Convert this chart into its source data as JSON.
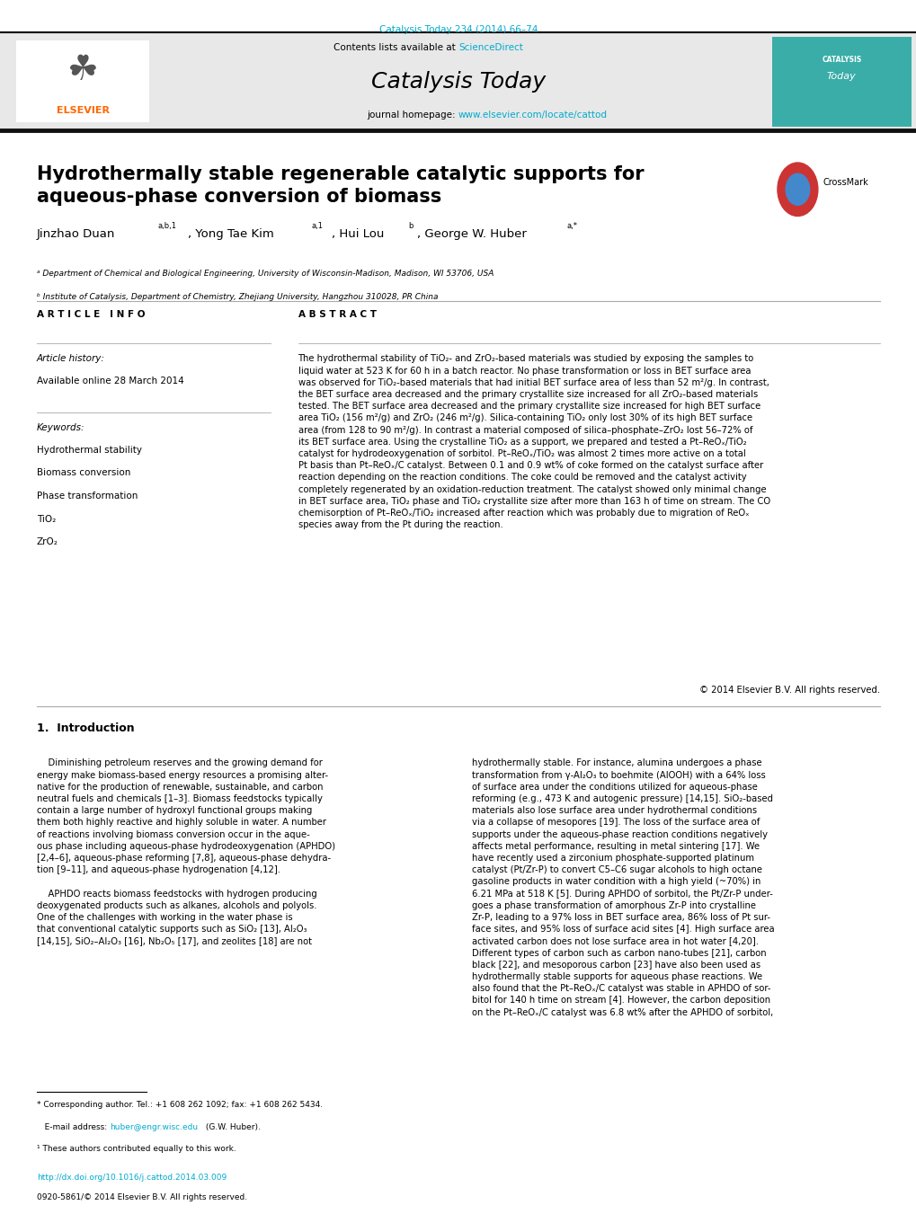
{
  "bg_color": "#ffffff",
  "page_width": 10.2,
  "page_height": 13.51,
  "journal_ref": "Catalysis Today 234 (2014) 66–74",
  "journal_ref_color": "#00aacc",
  "contents_text": "Contents lists available at ",
  "science_direct": "ScienceDirect",
  "science_direct_color": "#00aacc",
  "journal_name": "Catalysis Today",
  "journal_homepage_prefix": "journal homepage: ",
  "journal_homepage_url": "www.elsevier.com/locate/cattod",
  "journal_homepage_url_color": "#00aacc",
  "elsevier_color": "#ff6600",
  "header_bg": "#e8e8e8",
  "article_title": "Hydrothermally stable regenerable catalytic supports for\naqueous-phase conversion of biomass",
  "affil_a": "ᵃ Department of Chemical and Biological Engineering, University of Wisconsin-Madison, Madison, WI 53706, USA",
  "affil_b": "ᵇ Institute of Catalysis, Department of Chemistry, Zhejiang University, Hangzhou 310028, PR China",
  "article_info_title": "A R T I C L E   I N F O",
  "article_history": "Article history:",
  "available_online": "Available online 28 March 2014",
  "keywords_title": "Keywords:",
  "keywords": [
    "Hydrothermal stability",
    "Biomass conversion",
    "Phase transformation",
    "TiO₂",
    "ZrO₂"
  ],
  "abstract_title": "A B S T R A C T",
  "abstract_text": "The hydrothermal stability of TiO₂- and ZrO₂-based materials was studied by exposing the samples to\nliquid water at 523 K for 60 h in a batch reactor. No phase transformation or loss in BET surface area\nwas observed for TiO₂-based materials that had initial BET surface area of less than 52 m²/g. In contrast,\nthe BET surface area decreased and the primary crystallite size increased for all ZrO₂-based materials\ntested. The BET surface area decreased and the primary crystallite size increased for high BET surface\narea TiO₂ (156 m²/g) and ZrO₂ (246 m²/g). Silica-containing TiO₂ only lost 30% of its high BET surface\narea (from 128 to 90 m²/g). In contrast a material composed of silica–phosphate–ZrO₂ lost 56–72% of\nits BET surface area. Using the crystalline TiO₂ as a support, we prepared and tested a Pt–ReOₓ/TiO₂\ncatalyst for hydrodeoxygenation of sorbitol. Pt–ReOₓ/TiO₂ was almost 2 times more active on a total\nPt basis than Pt–ReOₓ/C catalyst. Between 0.1 and 0.9 wt% of coke formed on the catalyst surface after\nreaction depending on the reaction conditions. The coke could be removed and the catalyst activity\ncompletely regenerated by an oxidation-reduction treatment. The catalyst showed only minimal change\nin BET surface area, TiO₂ phase and TiO₂ crystallite size after more than 163 h of time on stream. The CO\nchemisorption of Pt–ReOₓ/TiO₂ increased after reaction which was probably due to migration of ReOₓ\nspecies away from the Pt during the reaction.",
  "copyright": "© 2014 Elsevier B.V. All rights reserved.",
  "intro_title": "1.  Introduction",
  "intro_col1": "    Diminishing petroleum reserves and the growing demand for\nenergy make biomass-based energy resources a promising alter-\nnative for the production of renewable, sustainable, and carbon\nneutral fuels and chemicals [1–3]. Biomass feedstocks typically\ncontain a large number of hydroxyl functional groups making\nthem both highly reactive and highly soluble in water. A number\nof reactions involving biomass conversion occur in the aque-\nous phase including aqueous-phase hydrodeoxygenation (APHDO)\n[2,4–6], aqueous-phase reforming [7,8], aqueous-phase dehydra-\ntion [9–11], and aqueous-phase hydrogenation [4,12].\n\n    APHDO reacts biomass feedstocks with hydrogen producing\ndeoxygenated products such as alkanes, alcohols and polyols.\nOne of the challenges with working in the water phase is\nthat conventional catalytic supports such as SiO₂ [13], Al₂O₃\n[14,15], SiO₂–Al₂O₃ [16], Nb₂O₅ [17], and zeolites [18] are not",
  "intro_col2": "hydrothermally stable. For instance, alumina undergoes a phase\ntransformation from γ-Al₂O₃ to boehmite (AlOOH) with a 64% loss\nof surface area under the conditions utilized for aqueous-phase\nreforming (e.g., 473 K and autogenic pressure) [14,15]. SiO₂-based\nmaterials also lose surface area under hydrothermal conditions\nvia a collapse of mesopores [19]. The loss of the surface area of\nsupports under the aqueous-phase reaction conditions negatively\naffects metal performance, resulting in metal sintering [17]. We\nhave recently used a zirconium phosphate-supported platinum\ncatalyst (Pt/Zr-P) to convert C5–C6 sugar alcohols to high octane\ngasoline products in water condition with a high yield (~70%) in\n6.21 MPa at 518 K [5]. During APHDO of sorbitol, the Pt/Zr-P under-\ngoes a phase transformation of amorphous Zr-P into crystalline\nZr-P, leading to a 97% loss in BET surface area, 86% loss of Pt sur-\nface sites, and 95% loss of surface acid sites [4]. High surface area\nactivated carbon does not lose surface area in hot water [4,20].\nDifferent types of carbon such as carbon nano-tubes [21], carbon\nblack [22], and mesoporous carbon [23] have also been used as\nhydrothermally stable supports for aqueous phase reactions. We\nalso found that the Pt–ReOₓ/C catalyst was stable in APHDO of sor-\nbitol for 140 h time on stream [4]. However, the carbon deposition\non the Pt–ReOₓ/C catalyst was 6.8 wt% after the APHDO of sorbitol,",
  "footnote_star": "* Corresponding author. Tel.: +1 608 262 1092; fax: +1 608 262 5434.",
  "footnote_email_prefix": "   E-mail address: ",
  "footnote_email": "huber@engr.wisc.edu",
  "footnote_email_color": "#00aacc",
  "footnote_email_suffix": " (G.W. Huber).",
  "footnote_1": "¹ These authors contributed equally to this work.",
  "doi_text": "http://dx.doi.org/10.1016/j.cattod.2014.03.009",
  "doi_color": "#00aacc",
  "issn_text": "0920-5861/© 2014 Elsevier B.V. All rights reserved.",
  "link_color": "#00aacc",
  "text_color": "#000000"
}
